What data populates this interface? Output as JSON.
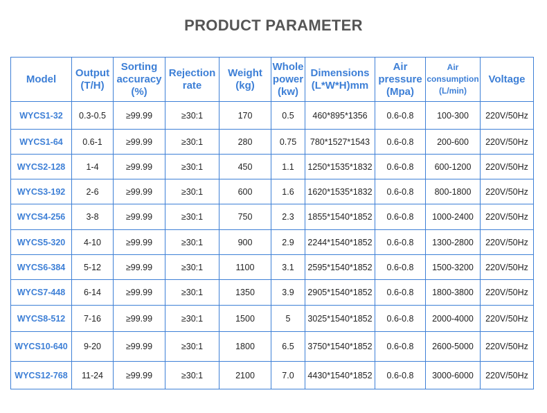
{
  "title": "PRODUCT PARAMETER",
  "accent_color": "#3d7fd6",
  "columns": [
    [
      "Model"
    ],
    [
      "Output",
      "(T/H)"
    ],
    [
      "Sorting",
      "accuracy",
      "(%)"
    ],
    [
      "Rejection",
      "rate"
    ],
    [
      "Weight",
      "(kg)"
    ],
    [
      "Whole",
      "power",
      "(kw)"
    ],
    [
      "Dimensions",
      "(L*W*H)mm"
    ],
    [
      "Air",
      "pressure",
      "(Mpa)"
    ],
    [
      "Air",
      "consumption",
      "(L/min)"
    ],
    [
      "Voltage"
    ]
  ],
  "rows": [
    [
      "WYCS1-32",
      "0.3-0.5",
      "≥99.99",
      "≥30:1",
      "170",
      "0.5",
      "460*895*1356",
      "0.6-0.8",
      "100-300",
      "220V/50Hz"
    ],
    [
      "WYCS1-64",
      "0.6-1",
      "≥99.99",
      "≥30:1",
      "280",
      "0.75",
      "780*1527*1543",
      "0.6-0.8",
      "200-600",
      "220V/50Hz"
    ],
    [
      "WYCS2-128",
      "1-4",
      "≥99.99",
      "≥30:1",
      "450",
      "1.1",
      "1250*1535*1832",
      "0.6-0.8",
      "600-1200",
      "220V/50Hz"
    ],
    [
      "WYCS3-192",
      "2-6",
      "≥99.99",
      "≥30:1",
      "600",
      "1.6",
      "1620*1535*1832",
      "0.6-0.8",
      "800-1800",
      "220V/50Hz"
    ],
    [
      "WYCS4-256",
      "3-8",
      "≥99.99",
      "≥30:1",
      "750",
      "2.3",
      "1855*1540*1852",
      "0.6-0.8",
      "1000-2400",
      "220V/50Hz"
    ],
    [
      "WYCS5-320",
      "4-10",
      "≥99.99",
      "≥30:1",
      "900",
      "2.9",
      "2244*1540*1852",
      "0.6-0.8",
      "1300-2800",
      "220V/50Hz"
    ],
    [
      "WYCS6-384",
      "5-12",
      "≥99.99",
      "≥30:1",
      "1100",
      "3.1",
      "2595*1540*1852",
      "0.6-0.8",
      "1500-3200",
      "220V/50Hz"
    ],
    [
      "WYCS7-448",
      "6-14",
      "≥99.99",
      "≥30:1",
      "1350",
      "3.9",
      "2905*1540*1852",
      "0.6-0.8",
      "1800-3800",
      "220V/50Hz"
    ],
    [
      "WYCS8-512",
      "7-16",
      "≥99.99",
      "≥30:1",
      "1500",
      "5",
      "3025*1540*1852",
      "0.6-0.8",
      "2000-4000",
      "220V/50Hz"
    ],
    [
      "WYCS10-640",
      "9-20",
      "≥99.99",
      "≥30:1",
      "1800",
      "6.5",
      "3750*1540*1852",
      "0.6-0.8",
      "2600-5000",
      "220V/50Hz"
    ],
    [
      "WYCS12-768",
      "11-24",
      "≥99.99",
      "≥30:1",
      "2100",
      "7.0",
      "4430*1540*1852",
      "0.6-0.8",
      "3000-6000",
      "220V/50Hz"
    ]
  ]
}
